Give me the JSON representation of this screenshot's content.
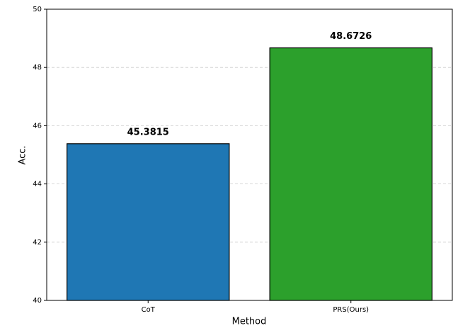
{
  "chart_data": {
    "type": "bar",
    "categories": [
      "CoT",
      "PRS(Ours)"
    ],
    "values": [
      45.3815,
      48.6726
    ],
    "colors": [
      "#1f77b4",
      "#2ca02c"
    ],
    "xlabel": "Method",
    "ylabel": "Acc.",
    "ylim": [
      40,
      50
    ],
    "yticks": [
      40,
      42,
      44,
      46,
      48,
      50
    ],
    "grid": true
  }
}
